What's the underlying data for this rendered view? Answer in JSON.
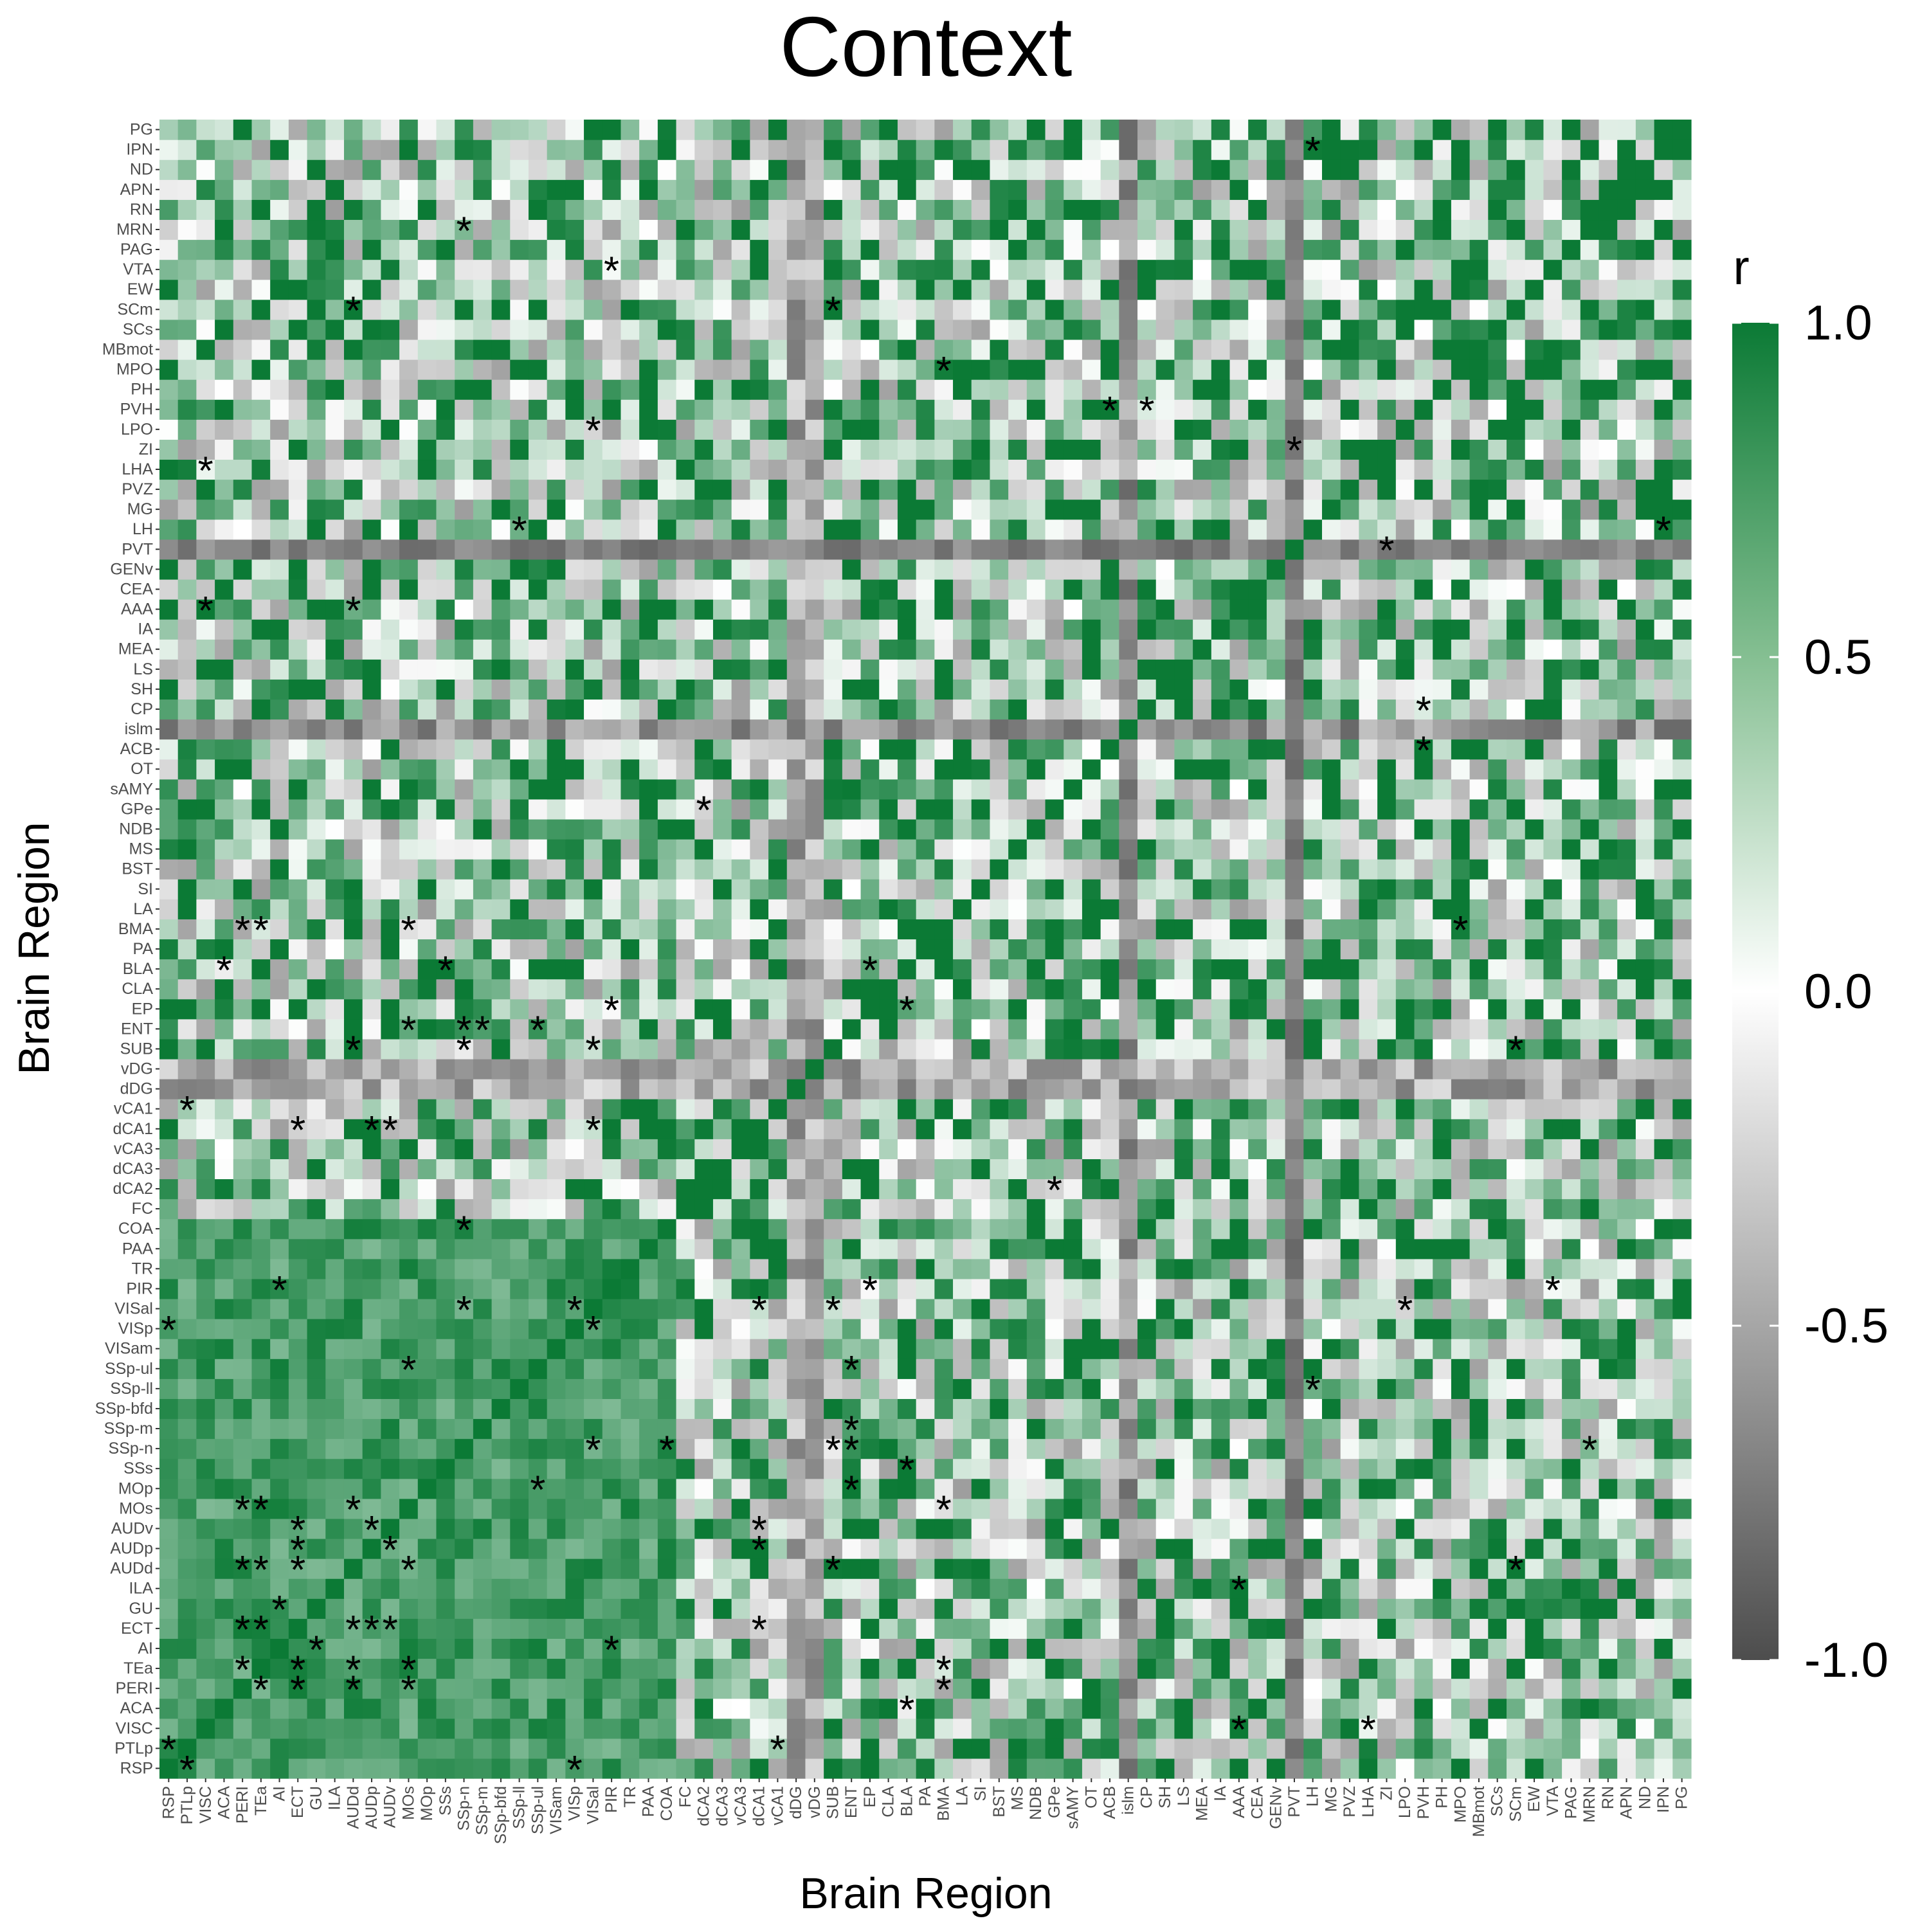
{
  "chart_data": {
    "type": "heatmap",
    "title": "Context",
    "xlabel": "Brain Region",
    "ylabel": "Brain Region",
    "regions": [
      "RSP",
      "PTLp",
      "VISC",
      "ACA",
      "PERI",
      "TEa",
      "AI",
      "ECT",
      "GU",
      "ILA",
      "AUDd",
      "AUDp",
      "AUDv",
      "MOs",
      "MOp",
      "SSs",
      "SSp-n",
      "SSp-m",
      "SSp-bfd",
      "SSp-ll",
      "SSp-ul",
      "VISam",
      "VISp",
      "VISal",
      "PIR",
      "TR",
      "PAA",
      "COA",
      "FC",
      "dCA2",
      "dCA3",
      "vCA3",
      "dCA1",
      "vCA1",
      "dDG",
      "vDG",
      "SUB",
      "ENT",
      "EP",
      "CLA",
      "BLA",
      "PA",
      "BMA",
      "LA",
      "SI",
      "BST",
      "MS",
      "NDB",
      "GPe",
      "sAMY",
      "OT",
      "ACB",
      "islm",
      "CP",
      "SH",
      "LS",
      "MEA",
      "IA",
      "AAA",
      "CEA",
      "GENv",
      "PVT",
      "LH",
      "MG",
      "PVZ",
      "LHA",
      "ZI",
      "LPO",
      "PVH",
      "PH",
      "MPO",
      "MBmot",
      "SCs",
      "SCm",
      "EW",
      "VTA",
      "PAG",
      "MRN",
      "RN",
      "APN",
      "ND",
      "IPN",
      "PG"
    ],
    "value_range": [
      -1,
      1
    ],
    "legend": {
      "title": "r",
      "ticks": [
        "1.0",
        "0.5",
        "0.0",
        "-0.5",
        "-1.0"
      ],
      "tick_values": [
        1.0,
        0.5,
        0.0,
        -0.5,
        -1.0
      ],
      "position": "right"
    },
    "colorscale": {
      "low": "#4d4d4d",
      "mid": "#ffffff",
      "high": "#0b7a35"
    },
    "structure_note_values": {
      "cortical_block_mean_r": 0.75,
      "hippocampal_dentate_mean_r": -0.45,
      "PVT_row_mean_r": -0.7,
      "islm_row_mean_r": -0.6
    },
    "significant_pairs": [
      [
        "IPN",
        "LH"
      ],
      [
        "MRN",
        "SSp-n"
      ],
      [
        "VTA",
        "PIR"
      ],
      [
        "SCm",
        "AUDd"
      ],
      [
        "SCm",
        "SUB"
      ],
      [
        "MPO",
        "BMA"
      ],
      [
        "PVH",
        "ACB"
      ],
      [
        "PVH",
        "CP"
      ],
      [
        "LPO",
        "VISal"
      ],
      [
        "ZI",
        "PVT"
      ],
      [
        "LHA",
        "VISC"
      ],
      [
        "LH",
        "SSp-ll"
      ],
      [
        "LH",
        "IPN"
      ],
      [
        "PVT",
        "ZI"
      ],
      [
        "AAA",
        "VISC"
      ],
      [
        "AAA",
        "AUDd"
      ],
      [
        "CP",
        "PVH"
      ],
      [
        "ACB",
        "PVH"
      ],
      [
        "GPe",
        "dCA2"
      ],
      [
        "BMA",
        "PERI"
      ],
      [
        "BMA",
        "TEa"
      ],
      [
        "BMA",
        "MOs"
      ],
      [
        "BMA",
        "MPO"
      ],
      [
        "BLA",
        "ACA"
      ],
      [
        "BLA",
        "SSs"
      ],
      [
        "BLA",
        "EP"
      ],
      [
        "EP",
        "PIR"
      ],
      [
        "EP",
        "BLA"
      ],
      [
        "ENT",
        "MOs"
      ],
      [
        "ENT",
        "SSp-m"
      ],
      [
        "ENT",
        "SSp-n"
      ],
      [
        "ENT",
        "SSp-ul"
      ],
      [
        "SUB",
        "AUDd"
      ],
      [
        "SUB",
        "SSp-n"
      ],
      [
        "SUB",
        "VISal"
      ],
      [
        "SUB",
        "SCm"
      ],
      [
        "vCA1",
        "PTLp"
      ],
      [
        "dCA1",
        "ECT"
      ],
      [
        "dCA1",
        "AUDp"
      ],
      [
        "dCA1",
        "AUDv"
      ],
      [
        "dCA1",
        "VISal"
      ],
      [
        "dCA2",
        "GPe"
      ],
      [
        "COA",
        "SSp-n"
      ],
      [
        "PIR",
        "AI"
      ],
      [
        "PIR",
        "EP"
      ],
      [
        "PIR",
        "VTA"
      ],
      [
        "VISal",
        "SSp-n"
      ],
      [
        "VISal",
        "VISp"
      ],
      [
        "VISal",
        "dCA1"
      ],
      [
        "VISal",
        "SUB"
      ],
      [
        "VISal",
        "LPO"
      ],
      [
        "VISp",
        "RSP"
      ],
      [
        "VISp",
        "VISal"
      ],
      [
        "SSp-ul",
        "MOs"
      ],
      [
        "SSp-ul",
        "ENT"
      ],
      [
        "SSp-ll",
        "LH"
      ],
      [
        "SSp-m",
        "ENT"
      ],
      [
        "SSp-n",
        "VISal"
      ],
      [
        "SSp-n",
        "COA"
      ],
      [
        "SSp-n",
        "SUB"
      ],
      [
        "SSp-n",
        "ENT"
      ],
      [
        "SSp-n",
        "MRN"
      ],
      [
        "SSs",
        "BLA"
      ],
      [
        "MOp",
        "SSp-ul"
      ],
      [
        "MOp",
        "ENT"
      ],
      [
        "MOs",
        "PERI"
      ],
      [
        "MOs",
        "TEa"
      ],
      [
        "MOs",
        "AUDd"
      ],
      [
        "MOs",
        "BMA"
      ],
      [
        "AUDv",
        "ECT"
      ],
      [
        "AUDv",
        "AUDp"
      ],
      [
        "AUDv",
        "dCA1"
      ],
      [
        "AUDp",
        "ECT"
      ],
      [
        "AUDp",
        "AUDv"
      ],
      [
        "AUDp",
        "dCA1"
      ],
      [
        "AUDd",
        "PERI"
      ],
      [
        "AUDd",
        "TEa"
      ],
      [
        "AUDd",
        "ECT"
      ],
      [
        "AUDd",
        "MOs"
      ],
      [
        "AUDd",
        "SUB"
      ],
      [
        "AUDd",
        "SCm"
      ],
      [
        "ILA",
        "AAA"
      ],
      [
        "GU",
        "AI"
      ],
      [
        "ECT",
        "PERI"
      ],
      [
        "ECT",
        "TEa"
      ],
      [
        "ECT",
        "AUDd"
      ],
      [
        "ECT",
        "AUDp"
      ],
      [
        "ECT",
        "AUDv"
      ],
      [
        "ECT",
        "dCA1"
      ],
      [
        "AI",
        "GU"
      ],
      [
        "AI",
        "PIR"
      ],
      [
        "TEa",
        "PERI"
      ],
      [
        "TEa",
        "ECT"
      ],
      [
        "TEa",
        "AUDd"
      ],
      [
        "TEa",
        "MOs"
      ],
      [
        "TEa",
        "BMA"
      ],
      [
        "PERI",
        "TEa"
      ],
      [
        "PERI",
        "ECT"
      ],
      [
        "PERI",
        "AUDd"
      ],
      [
        "PERI",
        "MOs"
      ],
      [
        "PERI",
        "BMA"
      ],
      [
        "ACA",
        "BLA"
      ],
      [
        "VISC",
        "AAA"
      ],
      [
        "VISC",
        "LHA"
      ],
      [
        "PTLp",
        "RSP"
      ],
      [
        "PTLp",
        "vCA1"
      ],
      [
        "RSP",
        "PTLp"
      ],
      [
        "RSP",
        "VISp"
      ]
    ]
  }
}
